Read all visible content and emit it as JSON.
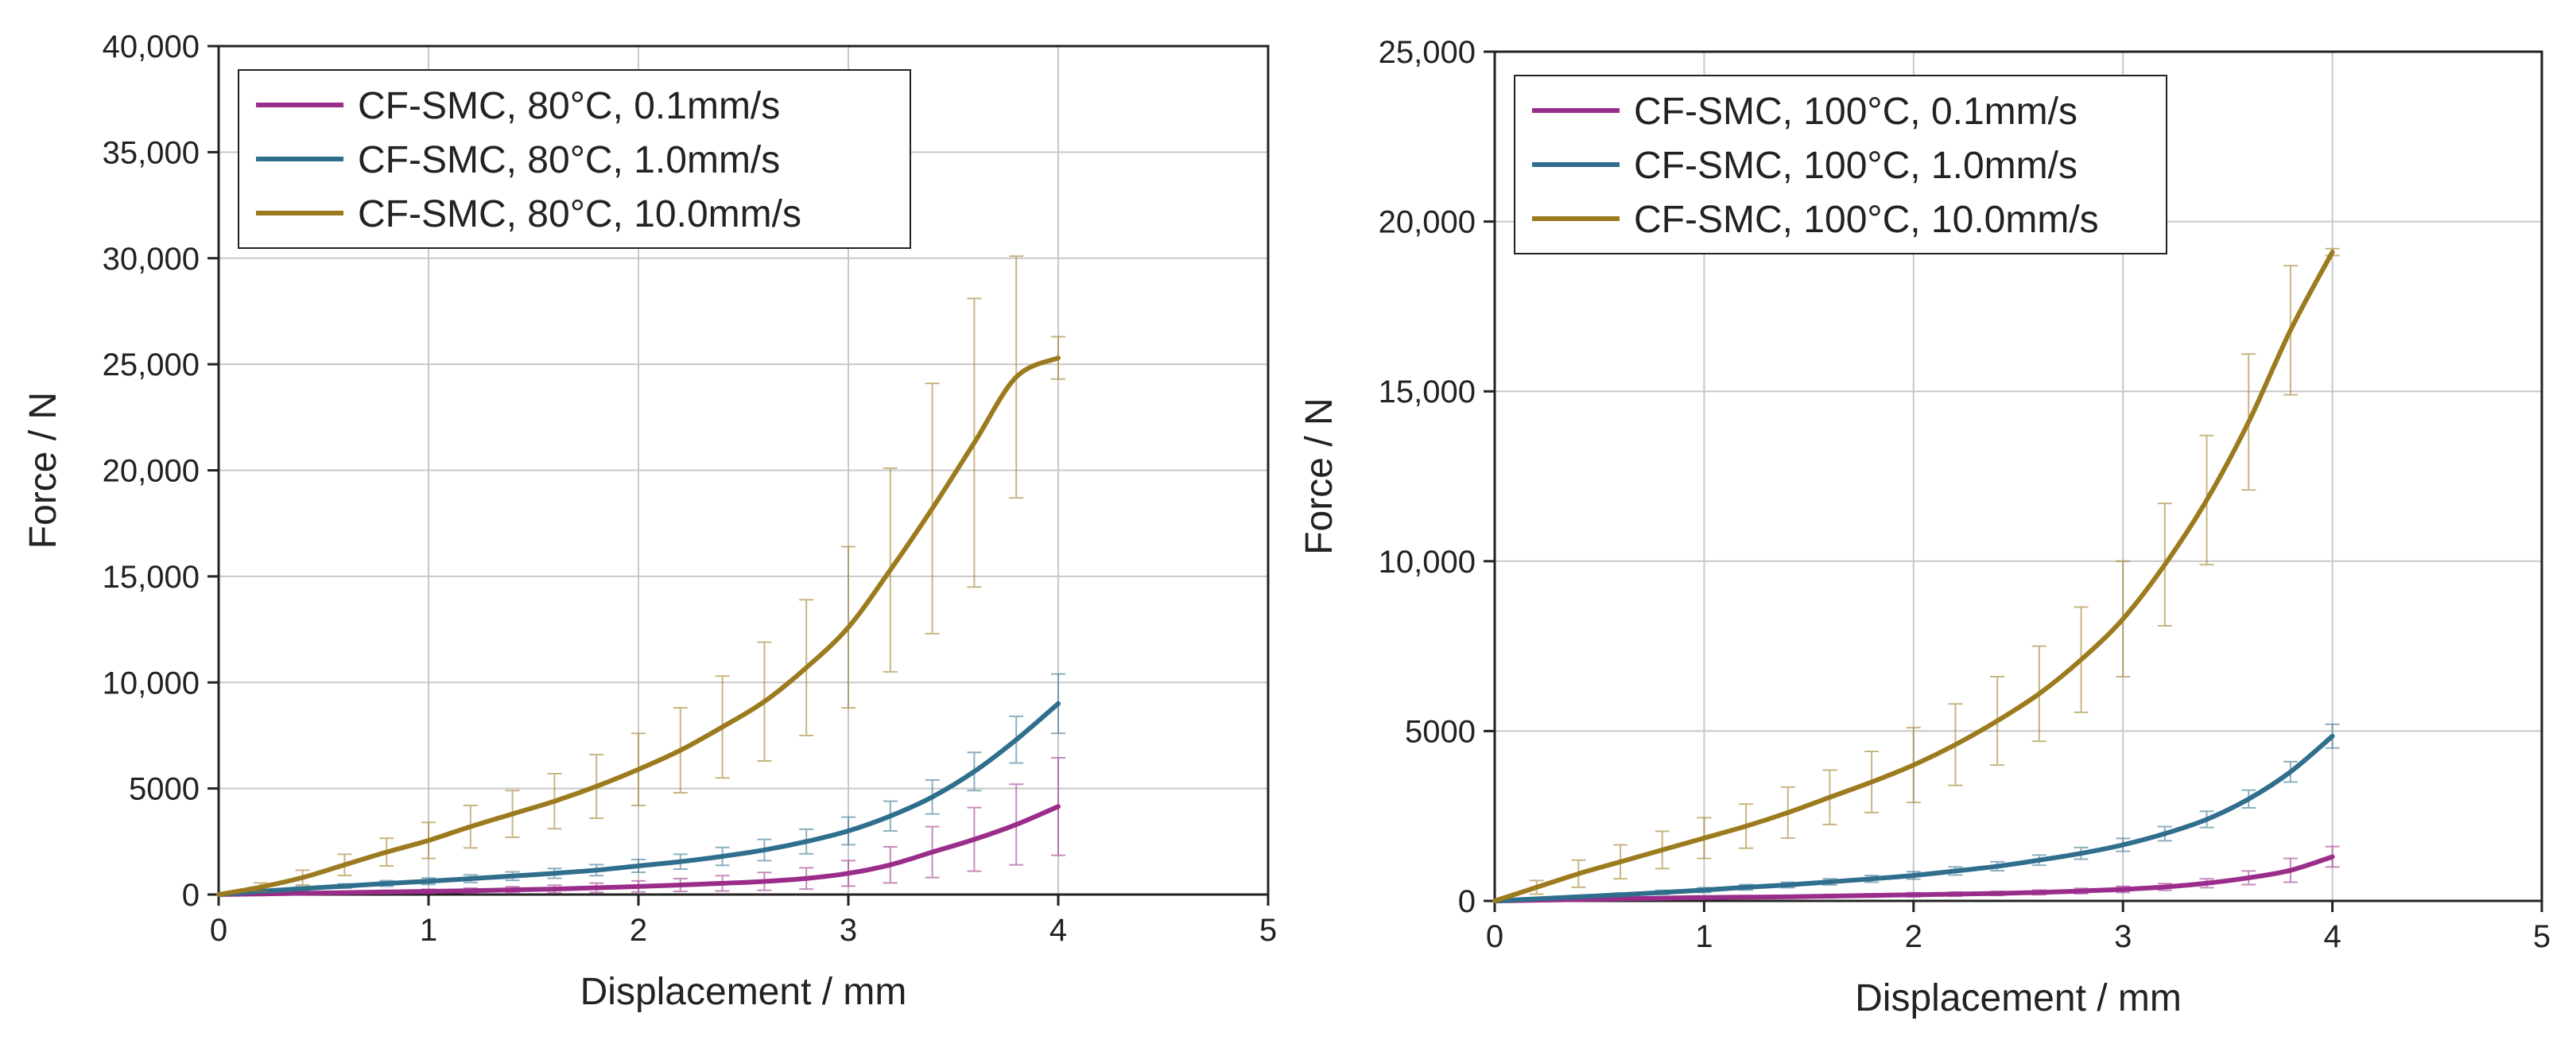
{
  "colors": {
    "series_1": "#9b2d8a",
    "series_2": "#2f6e8d",
    "series_3": "#9c7a1e",
    "grid": "#c8c8c8",
    "axis": "#222222"
  },
  "chart_data": [
    {
      "type": "line",
      "title": "",
      "xlabel": "Displacement / mm",
      "ylabel": "Force / N",
      "xlim": [
        0,
        5
      ],
      "ylim": [
        0,
        40000
      ],
      "grid": true,
      "legend_placement": "top-left",
      "x_ticks": [
        {
          "value": 0,
          "label": "0"
        },
        {
          "value": 1,
          "label": "1"
        },
        {
          "value": 2,
          "label": "2"
        },
        {
          "value": 3,
          "label": "3"
        },
        {
          "value": 4,
          "label": "4"
        },
        {
          "value": 5,
          "label": "5"
        }
      ],
      "y_ticks": [
        {
          "value": 0,
          "label": "0"
        },
        {
          "value": 5000,
          "label": "5000"
        },
        {
          "value": 10000,
          "label": "10,000"
        },
        {
          "value": 15000,
          "label": "15,000"
        },
        {
          "value": 20000,
          "label": "20,000"
        },
        {
          "value": 25000,
          "label": "25,000"
        },
        {
          "value": 30000,
          "label": "30,000"
        },
        {
          "value": 35000,
          "label": "35,000"
        },
        {
          "value": 40000,
          "label": "40,000"
        }
      ],
      "x": [
        0,
        0.2,
        0.4,
        0.6,
        0.8,
        1.0,
        1.2,
        1.4,
        1.6,
        1.8,
        2.0,
        2.2,
        2.4,
        2.6,
        2.8,
        3.0,
        3.2,
        3.4,
        3.6,
        3.8,
        4.0
      ],
      "series": [
        {
          "name": "CF-SMC, 80°C,  0.1mm/s",
          "color_key": "series_1",
          "values": [
            0,
            30,
            60,
            90,
            120,
            150,
            180,
            220,
            260,
            320,
            380,
            450,
            530,
            620,
            760,
            1000,
            1400,
            2000,
            2600,
            3300,
            4150
          ],
          "err_low": [
            0,
            20,
            40,
            60,
            80,
            100,
            120,
            150,
            180,
            220,
            260,
            300,
            360,
            420,
            500,
            600,
            850,
            1200,
            1500,
            1900,
            2300
          ],
          "err_high": [
            0,
            20,
            40,
            60,
            80,
            100,
            120,
            150,
            180,
            220,
            260,
            300,
            360,
            420,
            500,
            600,
            850,
            1200,
            1500,
            1900,
            2300
          ]
        },
        {
          "name": "CF-SMC, 80°C,  1.0mm/s",
          "color_key": "series_2",
          "values": [
            0,
            150,
            280,
            400,
            520,
            630,
            750,
            870,
            1000,
            1150,
            1350,
            1550,
            1800,
            2100,
            2500,
            3000,
            3700,
            4600,
            5800,
            7300,
            9000
          ],
          "err_low": [
            0,
            60,
            80,
            100,
            130,
            150,
            180,
            200,
            230,
            260,
            300,
            350,
            420,
            500,
            580,
            650,
            700,
            800,
            900,
            1100,
            1400
          ],
          "err_high": [
            0,
            60,
            80,
            100,
            130,
            150,
            180,
            200,
            230,
            260,
            300,
            350,
            420,
            500,
            580,
            650,
            700,
            800,
            900,
            1100,
            1400
          ]
        },
        {
          "name": "CF-SMC, 80°C,  10.0mm/s",
          "color_key": "series_3",
          "values": [
            0,
            350,
            800,
            1400,
            2000,
            2550,
            3200,
            3800,
            4400,
            5100,
            5900,
            6800,
            7900,
            9100,
            10700,
            12600,
            15300,
            18200,
            21300,
            24400,
            25300
          ],
          "err_low": [
            0,
            200,
            350,
            500,
            650,
            850,
            1000,
            1100,
            1300,
            1500,
            1700,
            2000,
            2400,
            2800,
            3200,
            3800,
            4800,
            5900,
            6800,
            5700,
            1000
          ],
          "err_high": [
            0,
            200,
            350,
            500,
            650,
            850,
            1000,
            1100,
            1300,
            1500,
            1700,
            2000,
            2400,
            2800,
            3200,
            3800,
            4800,
            5900,
            6800,
            5700,
            1000
          ]
        }
      ]
    },
    {
      "type": "line",
      "title": "",
      "xlabel": "Displacement / mm",
      "ylabel": "Force / N",
      "xlim": [
        0,
        5
      ],
      "ylim": [
        0,
        25000
      ],
      "grid": true,
      "legend_placement": "top-left",
      "x_ticks": [
        {
          "value": 0,
          "label": "0"
        },
        {
          "value": 1,
          "label": "1"
        },
        {
          "value": 2,
          "label": "2"
        },
        {
          "value": 3,
          "label": "3"
        },
        {
          "value": 4,
          "label": "4"
        },
        {
          "value": 5,
          "label": "5"
        }
      ],
      "y_ticks": [
        {
          "value": 0,
          "label": "0"
        },
        {
          "value": 5000,
          "label": "5000"
        },
        {
          "value": 10000,
          "label": "10,000"
        },
        {
          "value": 15000,
          "label": "15,000"
        },
        {
          "value": 20000,
          "label": "20,000"
        },
        {
          "value": 25000,
          "label": "25,000"
        }
      ],
      "x": [
        0,
        0.2,
        0.4,
        0.6,
        0.8,
        1.0,
        1.2,
        1.4,
        1.6,
        1.8,
        2.0,
        2.2,
        2.4,
        2.6,
        2.8,
        3.0,
        3.2,
        3.4,
        3.6,
        3.8,
        4.0
      ],
      "series": [
        {
          "name": "CF-SMC, 100°C, 0.1mm/s",
          "color_key": "series_1",
          "values": [
            0,
            20,
            40,
            60,
            80,
            100,
            110,
            120,
            140,
            160,
            180,
            200,
            220,
            250,
            290,
            340,
            410,
            520,
            680,
            900,
            1300
          ],
          "err_low": [
            0,
            20,
            20,
            30,
            30,
            40,
            40,
            40,
            50,
            50,
            60,
            60,
            60,
            70,
            80,
            90,
            100,
            130,
            200,
            350,
            300
          ],
          "err_high": [
            0,
            20,
            20,
            30,
            30,
            40,
            40,
            40,
            50,
            50,
            60,
            60,
            60,
            70,
            80,
            90,
            100,
            130,
            200,
            350,
            300
          ]
        },
        {
          "name": "CF-SMC, 100°C, 1.0mm/s",
          "color_key": "series_2",
          "values": [
            0,
            60,
            120,
            180,
            250,
            320,
            400,
            470,
            560,
            650,
            750,
            880,
            1020,
            1200,
            1400,
            1650,
            1980,
            2400,
            3000,
            3800,
            4850
          ],
          "err_low": [
            0,
            30,
            40,
            50,
            60,
            70,
            80,
            80,
            90,
            100,
            110,
            120,
            130,
            150,
            170,
            190,
            210,
            240,
            260,
            300,
            350
          ],
          "err_high": [
            0,
            30,
            40,
            50,
            60,
            70,
            80,
            80,
            90,
            100,
            110,
            120,
            130,
            150,
            170,
            190,
            210,
            240,
            260,
            300,
            350
          ]
        },
        {
          "name": "CF-SMC, 100°C, 10.0mm/s",
          "color_key": "series_3",
          "values": [
            0,
            400,
            800,
            1150,
            1500,
            1850,
            2200,
            2600,
            3050,
            3500,
            4000,
            4600,
            5300,
            6100,
            7100,
            8300,
            9900,
            11800,
            14100,
            16800,
            19100
          ],
          "err_low": [
            0,
            200,
            400,
            500,
            550,
            600,
            650,
            750,
            800,
            900,
            1100,
            1200,
            1300,
            1400,
            1550,
            1700,
            1800,
            1900,
            2000,
            1900,
            100
          ],
          "err_high": [
            0,
            200,
            400,
            500,
            550,
            600,
            650,
            750,
            800,
            900,
            1100,
            1200,
            1300,
            1400,
            1550,
            1700,
            1800,
            1900,
            2000,
            1900,
            100
          ]
        }
      ]
    }
  ]
}
